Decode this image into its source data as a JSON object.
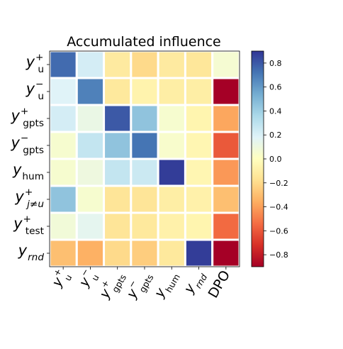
{
  "chart_data": {
    "type": "heatmap",
    "title": "Accumulated influence",
    "rows": [
      {
        "base": "y",
        "sub": "u",
        "sup": "+",
        "italic_sub": false
      },
      {
        "base": "y",
        "sub": "u",
        "sup": "−",
        "italic_sub": false
      },
      {
        "base": "y",
        "sub": "gpts",
        "sup": "+",
        "italic_sub": false
      },
      {
        "base": "y",
        "sub": "gpts",
        "sup": "−",
        "italic_sub": false
      },
      {
        "base": "y",
        "sub": "hum",
        "sup": "",
        "italic_sub": false
      },
      {
        "base": "y",
        "sub": "j≠u",
        "sup": "+",
        "italic_sub": true
      },
      {
        "base": "y",
        "sub": "test",
        "sup": "+",
        "italic_sub": false
      },
      {
        "base": "y",
        "sub": "rnd",
        "sup": "",
        "italic_sub": true
      }
    ],
    "columns": [
      {
        "base": "y",
        "sub": "u",
        "sup": "+",
        "italic_sub": false
      },
      {
        "base": "y",
        "sub": "u",
        "sup": "−",
        "italic_sub": false
      },
      {
        "base": "y",
        "sub": "gpts",
        "sup": "+",
        "italic_sub": false
      },
      {
        "base": "y",
        "sub": "gpts",
        "sup": "−",
        "italic_sub": false
      },
      {
        "base": "y",
        "sub": "hum",
        "sup": "",
        "italic_sub": false
      },
      {
        "base": "y",
        "sub": "rnd",
        "sup": "",
        "italic_sub": true
      },
      {
        "text": "DPO"
      }
    ],
    "values": [
      [
        0.75,
        0.22,
        -0.12,
        -0.2,
        -0.12,
        -0.14,
        0.06
      ],
      [
        0.18,
        0.68,
        -0.13,
        -0.07,
        -0.1,
        -0.1,
        -0.9
      ],
      [
        0.22,
        0.12,
        0.8,
        0.45,
        0.05,
        -0.06,
        -0.38
      ],
      [
        0.05,
        0.28,
        0.45,
        0.72,
        0.04,
        -0.05,
        -0.6
      ],
      [
        0.05,
        0.1,
        0.28,
        0.25,
        0.88,
        -0.05,
        -0.42
      ],
      [
        0.45,
        0.05,
        -0.15,
        -0.15,
        -0.1,
        -0.08,
        -0.3
      ],
      [
        0.08,
        0.15,
        -0.15,
        -0.13,
        -0.08,
        -0.06,
        -0.55
      ],
      [
        -0.3,
        -0.35,
        -0.2,
        -0.25,
        -0.13,
        0.88,
        -0.9
      ]
    ],
    "colormap": "RdYlBu",
    "vmin": -0.9,
    "vmax": 0.9,
    "colorbar_ticks": [
      "0.8",
      "0.6",
      "0.4",
      "0.2",
      "0.0",
      "−0.2",
      "−0.4",
      "−0.6",
      "−0.8"
    ],
    "colorbar_tick_values": [
      0.8,
      0.6,
      0.4,
      0.2,
      0.0,
      -0.2,
      -0.4,
      -0.6,
      -0.8
    ],
    "grid": "white lines between cells"
  }
}
